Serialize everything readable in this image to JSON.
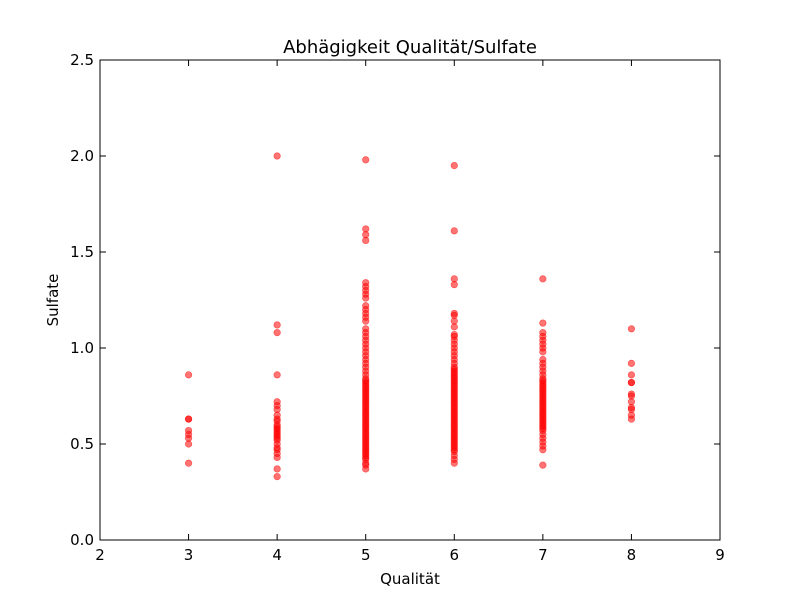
{
  "chart_data": {
    "type": "scatter",
    "title": "Abhägigkeit Qualität/Sulfate",
    "xlabel": "Qualität",
    "ylabel": "Sulfate",
    "xlim": [
      2,
      9
    ],
    "ylim": [
      0,
      2.5
    ],
    "xticks": [
      "2",
      "3",
      "4",
      "5",
      "6",
      "7",
      "8",
      "9"
    ],
    "yticks": [
      "0.0",
      "0.5",
      "1.0",
      "1.5",
      "2.0",
      "2.5"
    ],
    "grid": false,
    "marker_color": "#ff0000",
    "marker_alpha": 0.55,
    "series": [
      {
        "points": [
          [
            3,
            0.4
          ],
          [
            3,
            0.5
          ],
          [
            3,
            0.53
          ],
          [
            3,
            0.55
          ],
          [
            3,
            0.57
          ],
          [
            3,
            0.63
          ],
          [
            3,
            0.63
          ],
          [
            3,
            0.86
          ],
          [
            4,
            0.33
          ],
          [
            4,
            0.37
          ],
          [
            4,
            0.43
          ],
          [
            4,
            0.45
          ],
          [
            4,
            0.47
          ],
          [
            4,
            0.48
          ],
          [
            4,
            0.5
          ],
          [
            4,
            0.52
          ],
          [
            4,
            0.53
          ],
          [
            4,
            0.54
          ],
          [
            4,
            0.55
          ],
          [
            4,
            0.56
          ],
          [
            4,
            0.57
          ],
          [
            4,
            0.58
          ],
          [
            4,
            0.59
          ],
          [
            4,
            0.6
          ],
          [
            4,
            0.62
          ],
          [
            4,
            0.63
          ],
          [
            4,
            0.65
          ],
          [
            4,
            0.68
          ],
          [
            4,
            0.7
          ],
          [
            4,
            0.72
          ],
          [
            4,
            0.86
          ],
          [
            4,
            1.08
          ],
          [
            4,
            1.12
          ],
          [
            4,
            2.0
          ],
          [
            5,
            0.37
          ],
          [
            5,
            0.39
          ],
          [
            5,
            0.4
          ],
          [
            5,
            0.42
          ],
          [
            5,
            0.43
          ],
          [
            5,
            0.44
          ],
          [
            5,
            0.45
          ],
          [
            5,
            0.46
          ],
          [
            5,
            0.47
          ],
          [
            5,
            0.48
          ],
          [
            5,
            0.49
          ],
          [
            5,
            0.5
          ],
          [
            5,
            0.51
          ],
          [
            5,
            0.52
          ],
          [
            5,
            0.53
          ],
          [
            5,
            0.54
          ],
          [
            5,
            0.55
          ],
          [
            5,
            0.56
          ],
          [
            5,
            0.57
          ],
          [
            5,
            0.58
          ],
          [
            5,
            0.59
          ],
          [
            5,
            0.6
          ],
          [
            5,
            0.61
          ],
          [
            5,
            0.62
          ],
          [
            5,
            0.63
          ],
          [
            5,
            0.64
          ],
          [
            5,
            0.65
          ],
          [
            5,
            0.66
          ],
          [
            5,
            0.67
          ],
          [
            5,
            0.68
          ],
          [
            5,
            0.69
          ],
          [
            5,
            0.7
          ],
          [
            5,
            0.71
          ],
          [
            5,
            0.72
          ],
          [
            5,
            0.73
          ],
          [
            5,
            0.74
          ],
          [
            5,
            0.75
          ],
          [
            5,
            0.76
          ],
          [
            5,
            0.77
          ],
          [
            5,
            0.78
          ],
          [
            5,
            0.79
          ],
          [
            5,
            0.8
          ],
          [
            5,
            0.81
          ],
          [
            5,
            0.82
          ],
          [
            5,
            0.83
          ],
          [
            5,
            0.84
          ],
          [
            5,
            0.86
          ],
          [
            5,
            0.88
          ],
          [
            5,
            0.9
          ],
          [
            5,
            0.92
          ],
          [
            5,
            0.94
          ],
          [
            5,
            0.96
          ],
          [
            5,
            0.98
          ],
          [
            5,
            1.0
          ],
          [
            5,
            1.02
          ],
          [
            5,
            1.04
          ],
          [
            5,
            1.06
          ],
          [
            5,
            1.08
          ],
          [
            5,
            1.1
          ],
          [
            5,
            1.14
          ],
          [
            5,
            1.16
          ],
          [
            5,
            1.18
          ],
          [
            5,
            1.2
          ],
          [
            5,
            1.22
          ],
          [
            5,
            1.26
          ],
          [
            5,
            1.28
          ],
          [
            5,
            1.3
          ],
          [
            5,
            1.32
          ],
          [
            5,
            1.34
          ],
          [
            5,
            1.56
          ],
          [
            5,
            1.59
          ],
          [
            5,
            1.62
          ],
          [
            5,
            1.98
          ],
          [
            6,
            0.4
          ],
          [
            6,
            0.42
          ],
          [
            6,
            0.44
          ],
          [
            6,
            0.46
          ],
          [
            6,
            0.47
          ],
          [
            6,
            0.48
          ],
          [
            6,
            0.49
          ],
          [
            6,
            0.5
          ],
          [
            6,
            0.51
          ],
          [
            6,
            0.52
          ],
          [
            6,
            0.53
          ],
          [
            6,
            0.54
          ],
          [
            6,
            0.55
          ],
          [
            6,
            0.56
          ],
          [
            6,
            0.57
          ],
          [
            6,
            0.58
          ],
          [
            6,
            0.59
          ],
          [
            6,
            0.6
          ],
          [
            6,
            0.61
          ],
          [
            6,
            0.62
          ],
          [
            6,
            0.63
          ],
          [
            6,
            0.64
          ],
          [
            6,
            0.65
          ],
          [
            6,
            0.66
          ],
          [
            6,
            0.67
          ],
          [
            6,
            0.68
          ],
          [
            6,
            0.69
          ],
          [
            6,
            0.7
          ],
          [
            6,
            0.71
          ],
          [
            6,
            0.72
          ],
          [
            6,
            0.73
          ],
          [
            6,
            0.74
          ],
          [
            6,
            0.75
          ],
          [
            6,
            0.76
          ],
          [
            6,
            0.77
          ],
          [
            6,
            0.78
          ],
          [
            6,
            0.79
          ],
          [
            6,
            0.8
          ],
          [
            6,
            0.81
          ],
          [
            6,
            0.82
          ],
          [
            6,
            0.83
          ],
          [
            6,
            0.84
          ],
          [
            6,
            0.85
          ],
          [
            6,
            0.86
          ],
          [
            6,
            0.87
          ],
          [
            6,
            0.88
          ],
          [
            6,
            0.89
          ],
          [
            6,
            0.9
          ],
          [
            6,
            0.92
          ],
          [
            6,
            0.94
          ],
          [
            6,
            0.96
          ],
          [
            6,
            0.98
          ],
          [
            6,
            1.0
          ],
          [
            6,
            1.02
          ],
          [
            6,
            1.04
          ],
          [
            6,
            1.06
          ],
          [
            6,
            1.07
          ],
          [
            6,
            1.11
          ],
          [
            6,
            1.14
          ],
          [
            6,
            1.17
          ],
          [
            6,
            1.18
          ],
          [
            6,
            1.33
          ],
          [
            6,
            1.36
          ],
          [
            6,
            1.61
          ],
          [
            6,
            1.95
          ],
          [
            7,
            0.39
          ],
          [
            7,
            0.47
          ],
          [
            7,
            0.49
          ],
          [
            7,
            0.51
          ],
          [
            7,
            0.53
          ],
          [
            7,
            0.55
          ],
          [
            7,
            0.57
          ],
          [
            7,
            0.58
          ],
          [
            7,
            0.59
          ],
          [
            7,
            0.6
          ],
          [
            7,
            0.61
          ],
          [
            7,
            0.62
          ],
          [
            7,
            0.63
          ],
          [
            7,
            0.64
          ],
          [
            7,
            0.65
          ],
          [
            7,
            0.66
          ],
          [
            7,
            0.67
          ],
          [
            7,
            0.68
          ],
          [
            7,
            0.69
          ],
          [
            7,
            0.7
          ],
          [
            7,
            0.71
          ],
          [
            7,
            0.72
          ],
          [
            7,
            0.73
          ],
          [
            7,
            0.74
          ],
          [
            7,
            0.75
          ],
          [
            7,
            0.76
          ],
          [
            7,
            0.77
          ],
          [
            7,
            0.78
          ],
          [
            7,
            0.79
          ],
          [
            7,
            0.8
          ],
          [
            7,
            0.81
          ],
          [
            7,
            0.82
          ],
          [
            7,
            0.83
          ],
          [
            7,
            0.84
          ],
          [
            7,
            0.86
          ],
          [
            7,
            0.88
          ],
          [
            7,
            0.9
          ],
          [
            7,
            0.92
          ],
          [
            7,
            0.94
          ],
          [
            7,
            0.98
          ],
          [
            7,
            1.0
          ],
          [
            7,
            1.02
          ],
          [
            7,
            1.04
          ],
          [
            7,
            1.06
          ],
          [
            7,
            1.08
          ],
          [
            7,
            1.13
          ],
          [
            7,
            1.36
          ],
          [
            8,
            0.63
          ],
          [
            8,
            0.65
          ],
          [
            8,
            0.68
          ],
          [
            8,
            0.69
          ],
          [
            8,
            0.72
          ],
          [
            8,
            0.75
          ],
          [
            8,
            0.76
          ],
          [
            8,
            0.82
          ],
          [
            8,
            0.82
          ],
          [
            8,
            0.86
          ],
          [
            8,
            0.92
          ],
          [
            8,
            1.1
          ]
        ]
      }
    ]
  }
}
